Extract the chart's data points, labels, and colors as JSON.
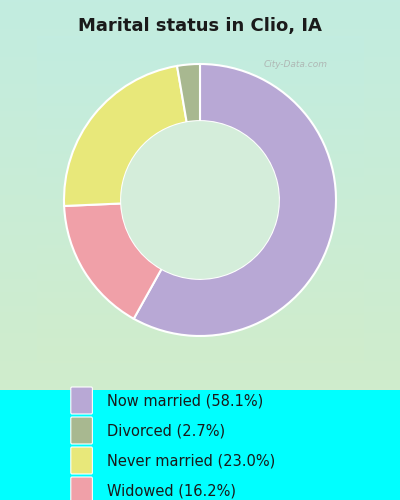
{
  "title": "Marital status in Clio, IA",
  "slices": [
    58.1,
    16.2,
    23.0,
    2.7
  ],
  "labels": [
    "Now married (58.1%)",
    "Divorced (2.7%)",
    "Never married (23.0%)",
    "Widowed (16.2%)"
  ],
  "legend_colors": [
    "#b8a8d5",
    "#a8b890",
    "#e8e87a",
    "#f0a0a8"
  ],
  "wedge_colors": [
    "#b8a8d5",
    "#f0a0a8",
    "#e8e87a",
    "#a8b890"
  ],
  "bg_color_top": "#c2ece0",
  "bg_color_bottom": "#d0eccc",
  "fig_bg_color": "#00ffff",
  "title_fontsize": 13,
  "legend_fontsize": 10.5,
  "watermark": "City-Data.com",
  "donut_width": 0.42,
  "start_angle": 90
}
